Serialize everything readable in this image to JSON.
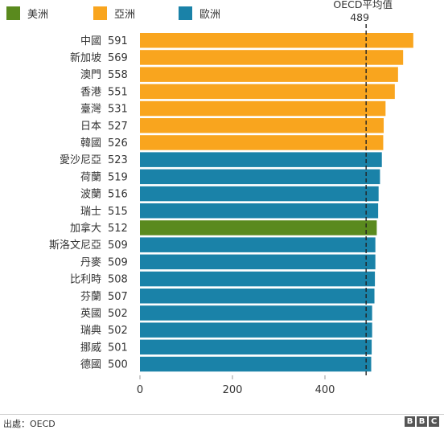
{
  "chart_data": {
    "type": "bar",
    "orientation": "horizontal",
    "categories": [
      "中國",
      "新加坡",
      "澳門",
      "香港",
      "臺灣",
      "日本",
      "韓國",
      "愛沙尼亞",
      "荷蘭",
      "波蘭",
      "瑞士",
      "加拿大",
      "斯洛文尼亞",
      "丹麥",
      "比利時",
      "芬蘭",
      "英國",
      "瑞典",
      "挪威",
      "德國"
    ],
    "values": [
      591,
      569,
      558,
      551,
      531,
      527,
      526,
      523,
      519,
      516,
      515,
      512,
      509,
      509,
      508,
      507,
      502,
      502,
      501,
      500
    ],
    "value_labels": [
      "591",
      "569",
      "558",
      "551",
      "531",
      "527",
      "526",
      "523",
      "519",
      "516",
      "515",
      "512",
      "509",
      "509",
      "508",
      "507",
      "502",
      "502",
      "501",
      "500"
    ],
    "groups": [
      "asia",
      "asia",
      "asia",
      "asia",
      "asia",
      "asia",
      "asia",
      "europe",
      "europe",
      "europe",
      "europe",
      "america",
      "europe",
      "europe",
      "europe",
      "europe",
      "europe",
      "europe",
      "europe",
      "europe"
    ],
    "legend": [
      {
        "key": "america",
        "label": "美洲",
        "color": "#5a8a1e"
      },
      {
        "key": "asia",
        "label": "亞洲",
        "color": "#f9a51e"
      },
      {
        "key": "europe",
        "label": "歐洲",
        "color": "#1a82a8"
      }
    ],
    "xlim": [
      0,
      600
    ],
    "xticks": [
      "0",
      "200",
      "400"
    ],
    "xtick_values": [
      0,
      200,
      400
    ],
    "reference_line": {
      "label": "OECD平均值",
      "value": 489,
      "value_label": "489"
    },
    "legend_position": "top-left"
  },
  "footer": {
    "source": "出處：OECD",
    "logo": [
      "B",
      "B",
      "C"
    ]
  }
}
